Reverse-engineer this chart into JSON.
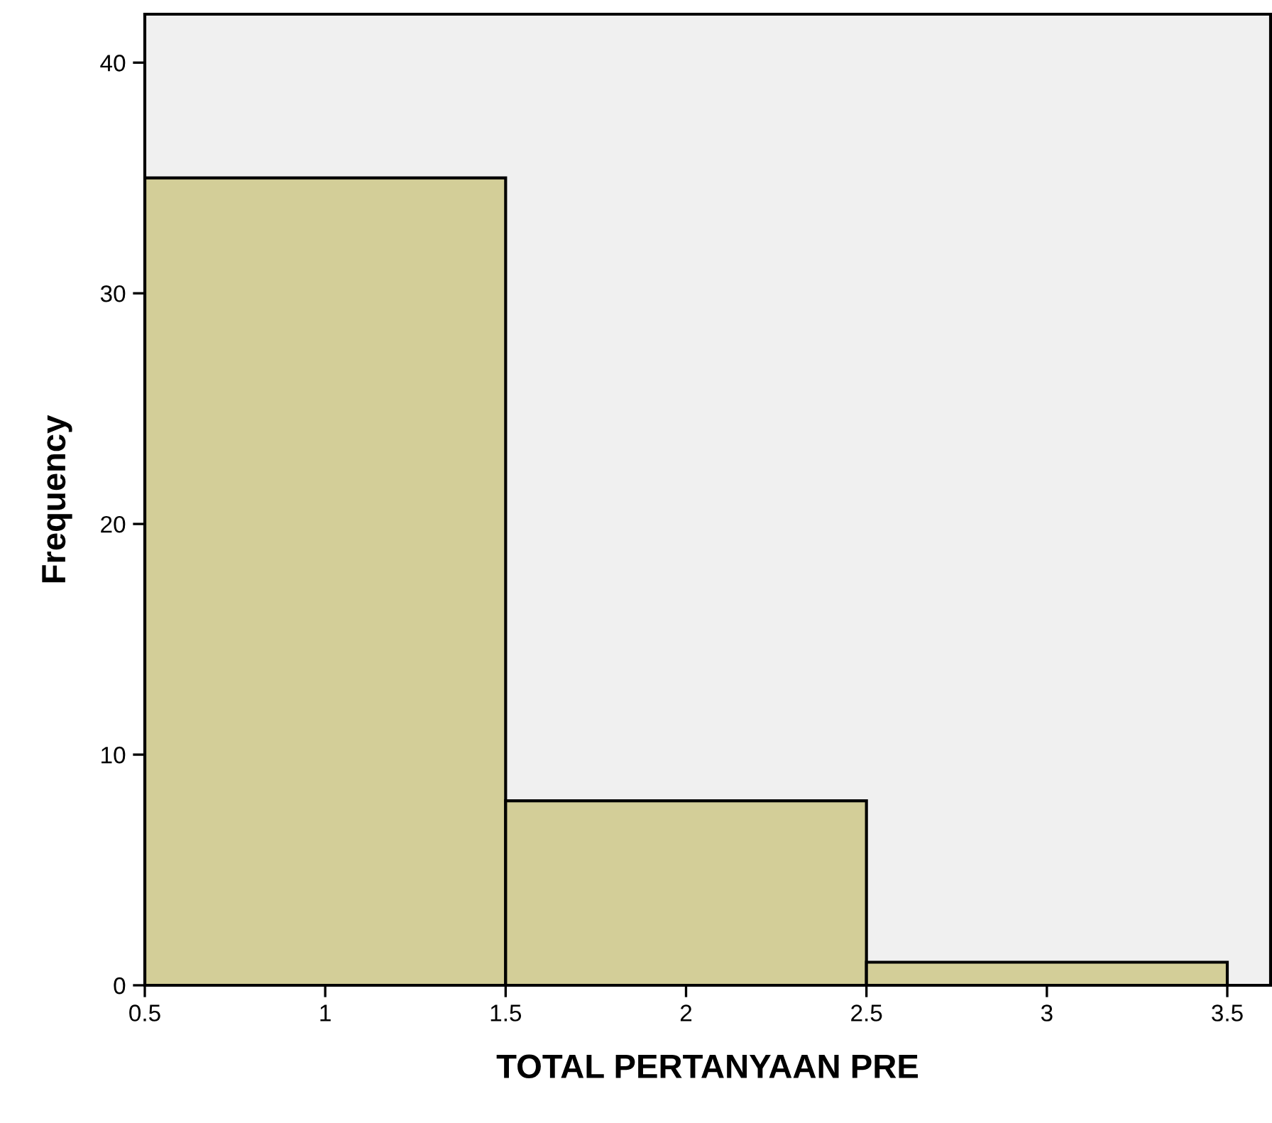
{
  "chart_data": {
    "type": "histogram",
    "xlabel": "TOTAL PERTANYAAN PRE",
    "ylabel": "Frequency",
    "bins": [
      0.5,
      1.5,
      2.5,
      3.5
    ],
    "values": [
      35,
      8,
      1
    ],
    "color": "#d3ce98",
    "xlim": [
      0.5,
      3.62
    ],
    "xticks": [
      0.5,
      1,
      1.5,
      2,
      2.5,
      3,
      3.5
    ],
    "ylim": [
      0,
      42.1
    ],
    "yticks": [
      0,
      10,
      20,
      30,
      40
    ],
    "grid": false
  }
}
